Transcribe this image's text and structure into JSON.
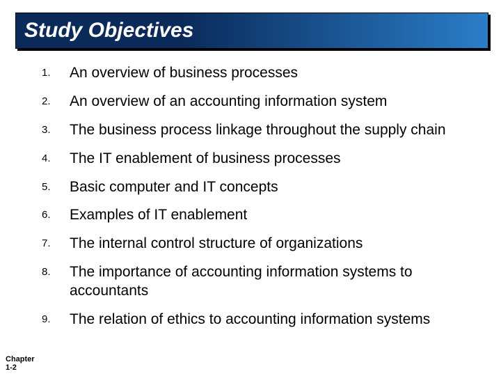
{
  "title": "Study Objectives",
  "title_color": "#ffffff",
  "title_fontsize": 30,
  "title_bg_gradient": {
    "from": "#0a2a5a",
    "to": "#2a7ec8"
  },
  "list_fontsize": 21,
  "num_fontsize": 15,
  "text_color": "#000000",
  "background_color": "#ffffff",
  "items": [
    {
      "n": "1.",
      "t": "An overview of business processes"
    },
    {
      "n": "2.",
      "t": "An overview of an accounting information system"
    },
    {
      "n": "3.",
      "t": "The business process linkage throughout the supply chain"
    },
    {
      "n": "4.",
      "t": "The IT enablement of business processes"
    },
    {
      "n": "5.",
      "t": "Basic computer and IT concepts"
    },
    {
      "n": "6.",
      "t": "Examples of IT enablement"
    },
    {
      "n": "7.",
      "t": "The internal control structure of organizations"
    },
    {
      "n": "8.",
      "t": "The importance of accounting information systems to accountants"
    },
    {
      "n": "9.",
      "t": "The relation of ethics to accounting information systems"
    }
  ],
  "footer_line1": "Chapter",
  "footer_line2": "1-2",
  "footer_fontsize": 11
}
